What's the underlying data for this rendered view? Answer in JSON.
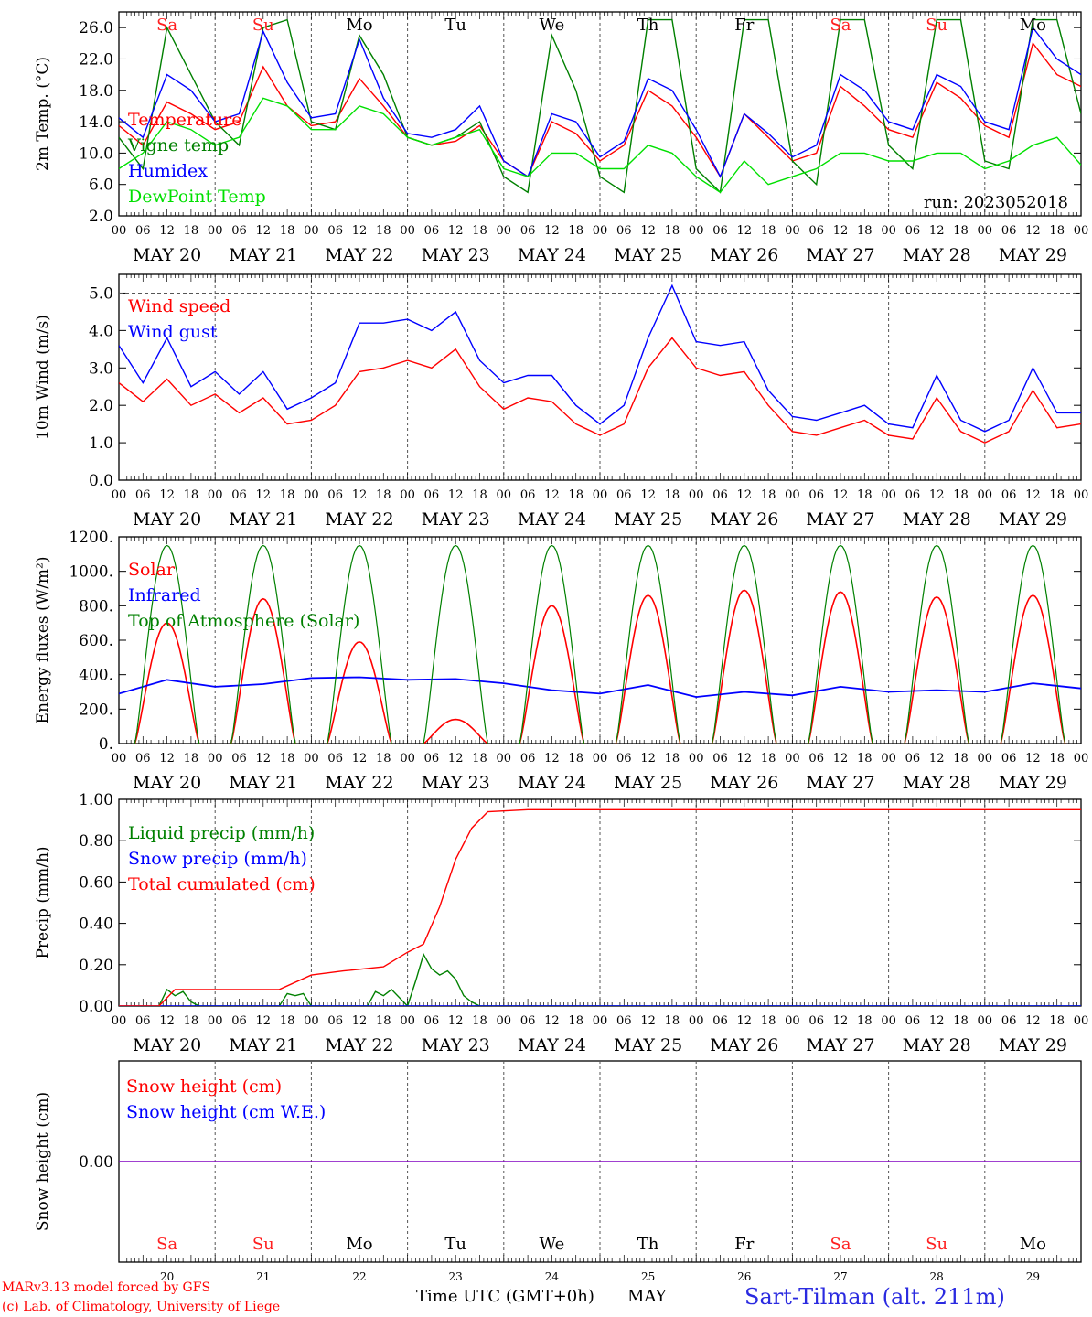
{
  "run_label": "run: 2023052018",
  "hour_ticks": [
    "00",
    "06",
    "12",
    "18"
  ],
  "hour_ticks_end": "00",
  "date_labels": [
    "MAY 20",
    "MAY 21",
    "MAY 22",
    "MAY 23",
    "MAY 24",
    "MAY 25",
    "MAY 26",
    "MAY 27",
    "MAY 28",
    "MAY 29"
  ],
  "day_names": [
    "Sa",
    "Su",
    "Mo",
    "Tu",
    "We",
    "Th",
    "Fr",
    "Sa",
    "Su",
    "Mo"
  ],
  "weekend_color": "#ff2020",
  "weekday_color": "#000000",
  "day_numbers": [
    "20",
    "21",
    "22",
    "23",
    "24",
    "25",
    "26",
    "27",
    "28",
    "29"
  ],
  "bottom_axis_label": "Time UTC (GMT+0h)",
  "bottom_axis_month": "MAY",
  "credit_line1": "MARv3.13 model forced by GFS",
  "credit_line2": "(c) Lab. of Climatology, University of Liege",
  "station_label": "Sart-Tilman (alt. 211m)",
  "colors": {
    "red": "#ff0000",
    "blue": "#0000ff",
    "dark_green": "#008000",
    "light_green": "#00e000",
    "purple": "#8000c0",
    "dashed_line": "#555555"
  },
  "chart_data": [
    {
      "type": "line",
      "ylabel": "2m Temp. (°C)",
      "ylim": [
        2,
        28
      ],
      "yticks": [
        2,
        6,
        10,
        14,
        18,
        22,
        26
      ],
      "ytick_labels": [
        "2.0",
        "6.0",
        "10.0",
        "14.0",
        "18.0",
        "22.0",
        "26.0"
      ],
      "x_unit": "hours since MAY 20 00 UTC",
      "x": [
        0,
        6,
        12,
        18,
        24,
        30,
        36,
        42,
        48,
        54,
        60,
        66,
        72,
        78,
        84,
        90,
        96,
        102,
        108,
        114,
        120,
        126,
        132,
        138,
        144,
        150,
        156,
        162,
        168,
        174,
        180,
        186,
        192,
        198,
        204,
        210,
        216,
        222,
        228,
        234,
        240
      ],
      "series": [
        {
          "name": "Temperature",
          "color": "#ff0000",
          "values": [
            13.5,
            11,
            16.5,
            15,
            13,
            14,
            21,
            16,
            13.5,
            14,
            19.5,
            16,
            12,
            11,
            11.5,
            13.5,
            9,
            7,
            14,
            12.5,
            9,
            11,
            18,
            16,
            12,
            7,
            15,
            12,
            9,
            10,
            18.5,
            16,
            13,
            12,
            19,
            17,
            13.5,
            12,
            24,
            20,
            18.5
          ]
        },
        {
          "name": "Vigne temp",
          "color": "#008000",
          "values": [
            12,
            8,
            26,
            20,
            14,
            11,
            26,
            27,
            14,
            13,
            25,
            20,
            12,
            11,
            12,
            14,
            7,
            5,
            25,
            18,
            7,
            5,
            27,
            27,
            8,
            5,
            27,
            27,
            9,
            6,
            27,
            27,
            11,
            8,
            27,
            27,
            9,
            8,
            27,
            27,
            15
          ]
        },
        {
          "name": "Humidex",
          "color": "#0000ff",
          "values": [
            14.5,
            12,
            20,
            18,
            14,
            15,
            25.5,
            19,
            14.5,
            15,
            24.5,
            17,
            12.5,
            12,
            13,
            16,
            9,
            7,
            15,
            14,
            9.5,
            11.5,
            19.5,
            18,
            13,
            7,
            15,
            12.5,
            9.5,
            11,
            20,
            18,
            14,
            13,
            20,
            18.5,
            14,
            13,
            26,
            22,
            20
          ]
        },
        {
          "name": "DewPoint Temp",
          "color": "#00e000",
          "values": [
            8,
            10,
            14,
            13,
            11,
            12,
            17,
            16,
            13,
            13,
            16,
            15,
            12,
            11,
            12,
            13,
            8,
            7,
            10,
            10,
            8,
            8,
            11,
            10,
            7,
            5,
            9,
            6,
            7,
            8,
            10,
            10,
            9,
            9,
            10,
            10,
            8,
            9,
            11,
            12,
            8.5
          ]
        }
      ],
      "visible_text": [
        "Temperature",
        "Vigne temp",
        "Humidex",
        "DewPoint Temp"
      ]
    },
    {
      "type": "line",
      "ylabel": "10m Wind (m/s)",
      "ylim": [
        0,
        5.5
      ],
      "yticks": [
        0,
        1,
        2,
        3,
        4,
        5
      ],
      "ytick_labels": [
        "0.0",
        "1.0",
        "2.0",
        "3.0",
        "4.0",
        "5.0"
      ],
      "reference_line": 5.0,
      "x_unit": "hours since MAY 20 00 UTC",
      "x": [
        0,
        6,
        12,
        18,
        24,
        30,
        36,
        42,
        48,
        54,
        60,
        66,
        72,
        78,
        84,
        90,
        96,
        102,
        108,
        114,
        120,
        126,
        132,
        138,
        144,
        150,
        156,
        162,
        168,
        174,
        180,
        186,
        192,
        198,
        204,
        210,
        216,
        222,
        228,
        234,
        240
      ],
      "series": [
        {
          "name": "Wind speed",
          "color": "#ff0000",
          "values": [
            2.6,
            2.1,
            2.7,
            2.0,
            2.3,
            1.8,
            2.2,
            1.5,
            1.6,
            2.0,
            2.9,
            3.0,
            3.2,
            3.0,
            3.5,
            2.5,
            1.9,
            2.2,
            2.1,
            1.5,
            1.2,
            1.5,
            3.0,
            3.8,
            3.0,
            2.8,
            2.9,
            2.0,
            1.3,
            1.2,
            1.4,
            1.6,
            1.2,
            1.1,
            2.2,
            1.3,
            1.0,
            1.3,
            2.4,
            1.4,
            1.5
          ]
        },
        {
          "name": "Wind gust",
          "color": "#0000ff",
          "values": [
            3.6,
            2.6,
            3.8,
            2.5,
            2.9,
            2.3,
            2.9,
            1.9,
            2.2,
            2.6,
            4.2,
            4.2,
            4.3,
            4.0,
            4.5,
            3.2,
            2.6,
            2.8,
            2.8,
            2.0,
            1.5,
            2.0,
            3.8,
            5.2,
            3.7,
            3.6,
            3.7,
            2.4,
            1.7,
            1.6,
            1.8,
            2.0,
            1.5,
            1.4,
            2.8,
            1.6,
            1.3,
            1.6,
            3.0,
            1.8,
            1.8
          ]
        }
      ],
      "visible_text": [
        "Wind speed",
        "Wind gust"
      ]
    },
    {
      "type": "line",
      "ylabel": "Energy fluxes (W/m²)",
      "ylim": [
        0,
        1200
      ],
      "yticks": [
        0,
        200,
        400,
        600,
        800,
        1000,
        1200
      ],
      "ytick_labels": [
        "0.",
        "200.",
        "400.",
        "600.",
        "800.",
        "1000.",
        "1200."
      ],
      "x_unit": "hours since MAY 20 00 UTC",
      "solar_noon_hour": 12,
      "daylight_half_width_hours": 8,
      "series": [
        {
          "name": "Solar",
          "color": "#ff0000",
          "daily_peak": [
            700,
            840,
            590,
            140,
            800,
            860,
            890,
            880,
            850,
            860
          ]
        },
        {
          "name": "Infrared",
          "color": "#0000ff",
          "x": [
            0,
            12,
            24,
            36,
            48,
            60,
            72,
            84,
            96,
            108,
            120,
            132,
            144,
            156,
            168,
            180,
            192,
            204,
            216,
            228,
            240
          ],
          "values": [
            290,
            370,
            330,
            345,
            380,
            385,
            370,
            375,
            350,
            310,
            290,
            340,
            270,
            300,
            280,
            330,
            300,
            310,
            300,
            350,
            320
          ]
        },
        {
          "name": "Top of Atmosphere (Solar)",
          "color": "#008000",
          "daily_peak": [
            1150,
            1150,
            1150,
            1150,
            1150,
            1150,
            1150,
            1150,
            1150,
            1150
          ]
        }
      ],
      "visible_text": [
        "Solar",
        "Infrared",
        "Top of Atmosphere (Solar)"
      ]
    },
    {
      "type": "line",
      "ylabel": "Precip (mm/h)",
      "ylim": [
        0,
        1.0
      ],
      "yticks": [
        0,
        0.2,
        0.4,
        0.6,
        0.8,
        1.0
      ],
      "ytick_labels": [
        "0.00",
        "0.20",
        "0.40",
        "0.60",
        "0.80",
        "1.00"
      ],
      "x_unit": "hours since MAY 20 00 UTC",
      "series": [
        {
          "name": "Liquid precip (mm/h)",
          "color": "#008000",
          "x": [
            10,
            12,
            14,
            16,
            18,
            20,
            40,
            42,
            44,
            46,
            48,
            54,
            62,
            64,
            66,
            68,
            72,
            74,
            76,
            78,
            80,
            82,
            84,
            86,
            88,
            90,
            240
          ],
          "values": [
            0,
            0.08,
            0.05,
            0.07,
            0.02,
            0,
            0,
            0.06,
            0.05,
            0.06,
            0,
            0,
            0,
            0.07,
            0.05,
            0.08,
            0,
            0.12,
            0.25,
            0.18,
            0.15,
            0.17,
            0.13,
            0.05,
            0.02,
            0,
            0
          ]
        },
        {
          "name": "Snow precip (mm/h)",
          "color": "#0000ff",
          "x": [
            0,
            240
          ],
          "values": [
            0,
            0
          ]
        },
        {
          "name": "Total cumulated (cm)",
          "color": "#ff0000",
          "x": [
            0,
            10,
            14,
            40,
            48,
            56,
            66,
            72,
            76,
            80,
            84,
            88,
            92,
            102,
            240
          ],
          "values": [
            0,
            0,
            0.08,
            0.08,
            0.15,
            0.17,
            0.19,
            0.26,
            0.3,
            0.48,
            0.71,
            0.86,
            0.94,
            0.95,
            0.95
          ]
        }
      ],
      "visible_text": [
        "Liquid precip (mm/h)",
        "Snow precip (mm/h)",
        "Total cumulated (cm)"
      ]
    },
    {
      "type": "line",
      "ylabel": "Snow height (cm)",
      "yticks": [
        0
      ],
      "ytick_labels": [
        "0.00"
      ],
      "x_unit": "hours since MAY 20 00 UTC",
      "series": [
        {
          "name": "Snow height (cm)",
          "color": "#ff0000",
          "x": [
            0,
            240
          ],
          "values": [
            0,
            0
          ]
        },
        {
          "name": "Snow height (cm W.E.)",
          "color": "#0000ff",
          "x": [
            0,
            240
          ],
          "values": [
            0,
            0
          ]
        }
      ],
      "visible_text": [
        "Snow height (cm)",
        "Snow height (cm W.E.)"
      ]
    }
  ]
}
